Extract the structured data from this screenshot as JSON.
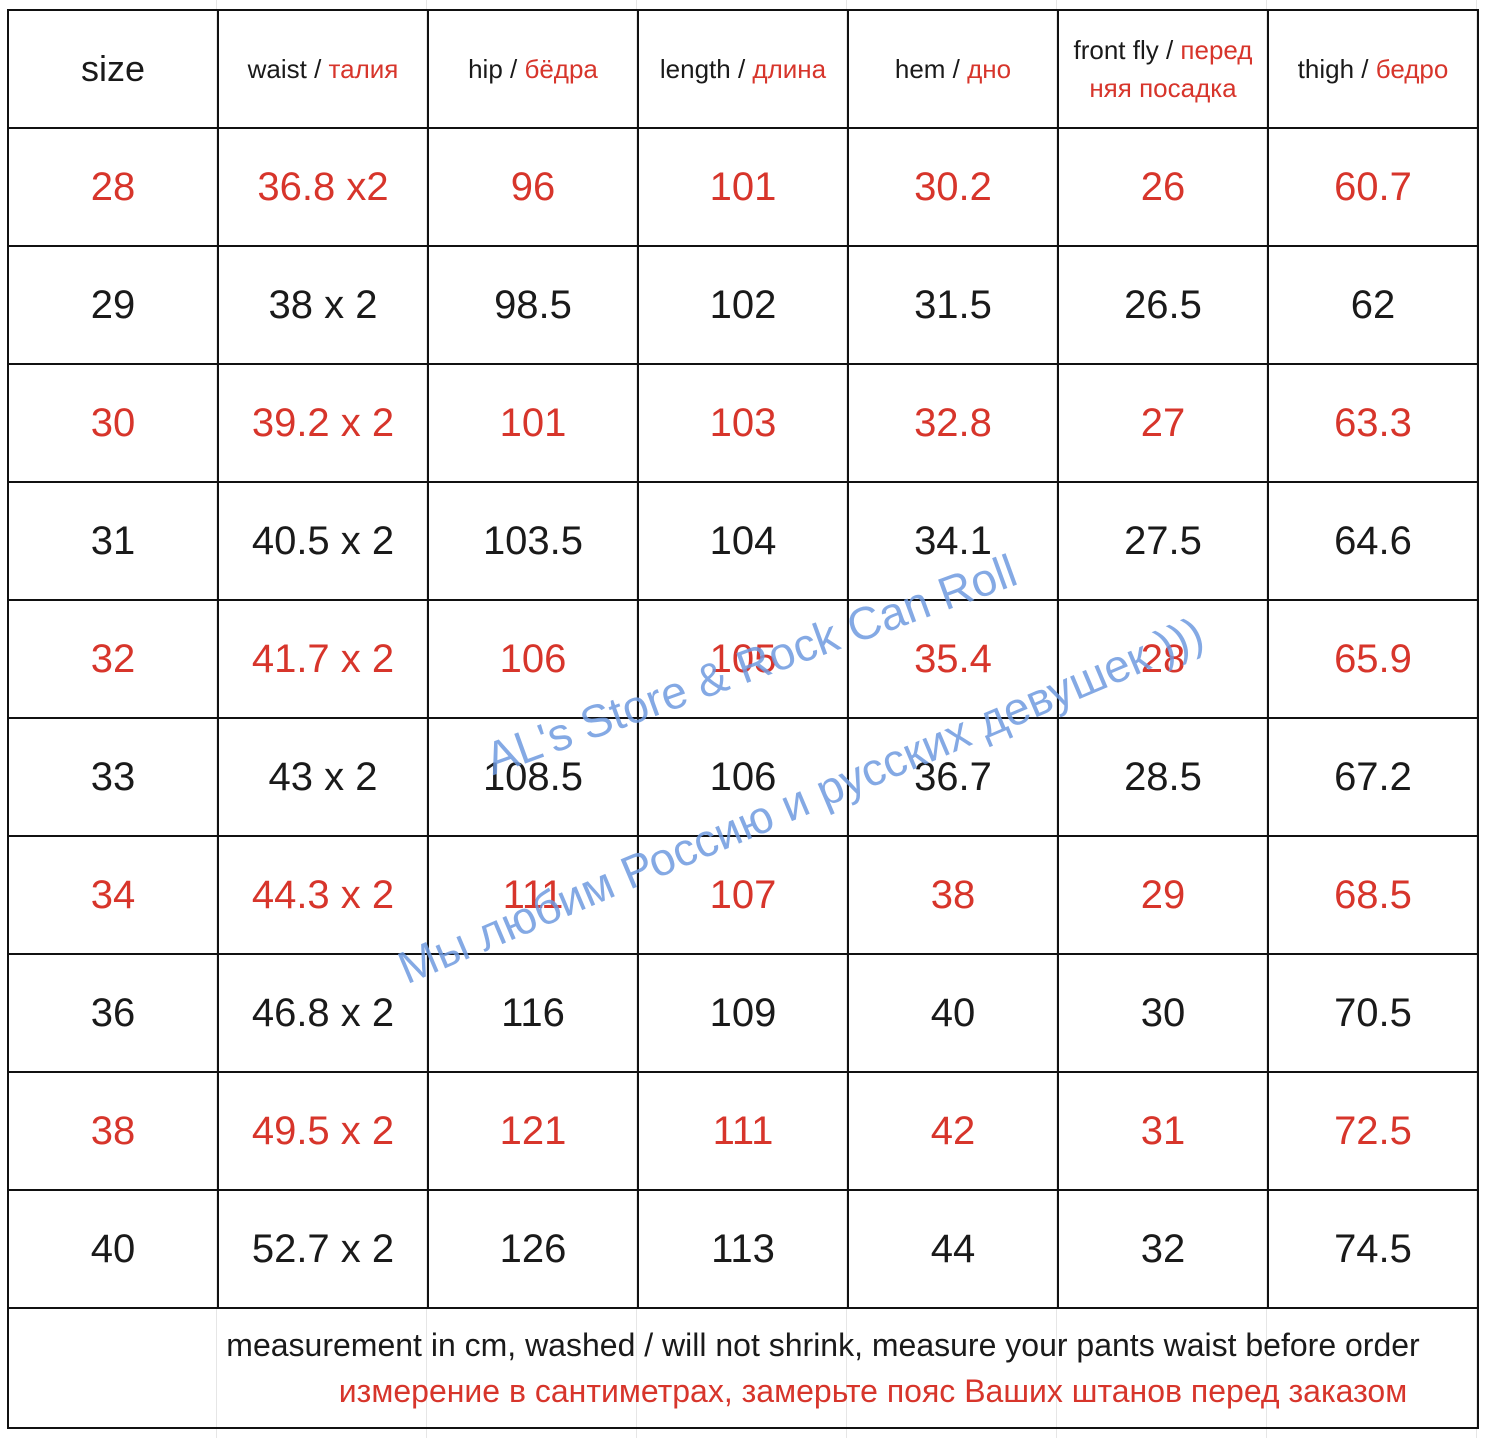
{
  "header": {
    "size": "size",
    "waist": {
      "en": "waist / ",
      "ru": "талия"
    },
    "hip": {
      "en": "hip / ",
      "ru": "бёдра"
    },
    "length": {
      "en": "length / ",
      "ru": "длина"
    },
    "hem": {
      "en": "hem / ",
      "ru": "дно"
    },
    "front_fly": {
      "en": "front fly / ",
      "ru": "перед няя посадка"
    },
    "thigh": {
      "en": "thigh / ",
      "ru": "бедро"
    }
  },
  "rows": [
    {
      "size": "28",
      "waist": "36.8 x2",
      "hip": "96",
      "length": "101",
      "hem": "30.2",
      "front_fly": "26",
      "thigh": "60.7",
      "color": "red"
    },
    {
      "size": "29",
      "waist": "38 x 2",
      "hip": "98.5",
      "length": "102",
      "hem": "31.5",
      "front_fly": "26.5",
      "thigh": "62",
      "color": "black"
    },
    {
      "size": "30",
      "waist": "39.2 x 2",
      "hip": "101",
      "length": "103",
      "hem": "32.8",
      "front_fly": "27",
      "thigh": "63.3",
      "color": "red"
    },
    {
      "size": "31",
      "waist": "40.5 x 2",
      "hip": "103.5",
      "length": "104",
      "hem": "34.1",
      "front_fly": "27.5",
      "thigh": "64.6",
      "color": "black"
    },
    {
      "size": "32",
      "waist": "41.7 x 2",
      "hip": "106",
      "length": "105",
      "hem": "35.4",
      "front_fly": "28",
      "thigh": "65.9",
      "color": "red"
    },
    {
      "size": "33",
      "waist": "43 x 2",
      "hip": "108.5",
      "length": "106",
      "hem": "36.7",
      "front_fly": "28.5",
      "thigh": "67.2",
      "color": "black"
    },
    {
      "size": "34",
      "waist": "44.3 x 2",
      "hip": "111",
      "length": "107",
      "hem": "38",
      "front_fly": "29",
      "thigh": "68.5",
      "color": "red"
    },
    {
      "size": "36",
      "waist": "46.8 x 2",
      "hip": "116",
      "length": "109",
      "hem": "40",
      "front_fly": "30",
      "thigh": "70.5",
      "color": "black"
    },
    {
      "size": "38",
      "waist": "49.5 x 2",
      "hip": "121",
      "length": "111",
      "hem": "42",
      "front_fly": "31",
      "thigh": "72.5",
      "color": "red"
    },
    {
      "size": "40",
      "waist": "52.7 x 2",
      "hip": "126",
      "length": "113",
      "hem": "44",
      "front_fly": "32",
      "thigh": "74.5",
      "color": "black"
    }
  ],
  "note": {
    "en": "measurement in cm, washed / will not shrink, measure your pants waist before order",
    "ru": "измерение в сантиметрах, замерьте пояс Ваших штанов перед заказом"
  },
  "watermark": {
    "line1": "AL's Store & Rock Can Roll",
    "line2": "Мы любим Россию и русских девушек )))"
  },
  "colors": {
    "accent_red": "#d7352b",
    "watermark_blue": "#6f9be0",
    "text": "#1a1a1a"
  }
}
